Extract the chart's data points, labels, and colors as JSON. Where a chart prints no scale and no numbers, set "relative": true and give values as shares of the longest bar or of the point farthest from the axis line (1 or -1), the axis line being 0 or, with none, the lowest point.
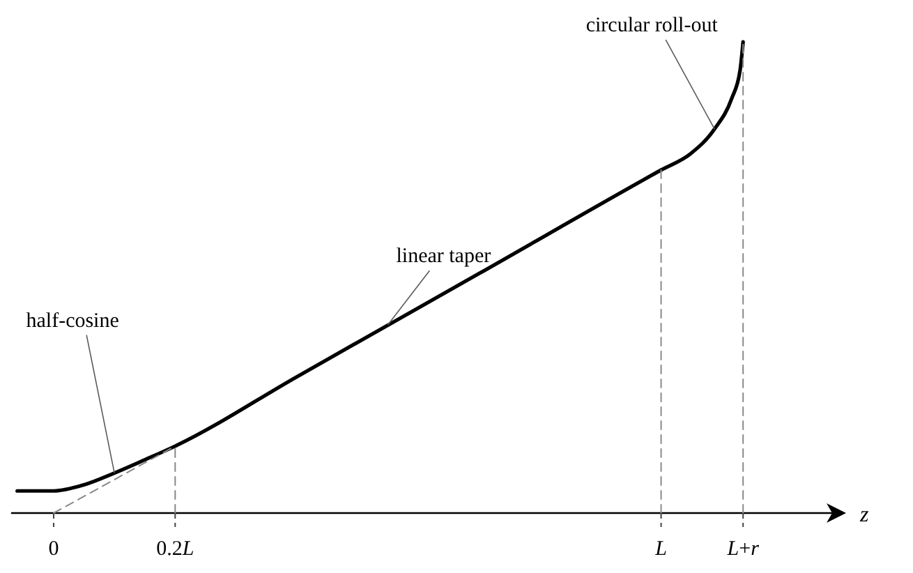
{
  "chart_data": {
    "type": "line",
    "relative": true,
    "xlabel": "z",
    "xlim": [
      -0.07,
      1.3
    ],
    "xticks": [
      0,
      {
        "value": 0.2,
        "label": "0.2L"
      },
      {
        "value": 1,
        "label": "L"
      },
      {
        "value": 1.135,
        "label": "L+r"
      }
    ],
    "series": [
      {
        "color": "#000000",
        "line_style": "solid",
        "x": [
          -0.06,
          0,
          0.05,
          0.1,
          0.15,
          0.2,
          0.4,
          0.7,
          1,
          1.049,
          1.088,
          1.116,
          1.13,
          1.135
        ],
        "values": [
          0.047,
          0.047,
          0.06,
          0.085,
          0.113,
          0.142,
          0.289,
          0.508,
          0.728,
          0.763,
          0.815,
          0.879,
          0.939,
          1
        ]
      },
      {
        "color": "#888888",
        "line_style": "dashed",
        "x": [
          0,
          0.2
        ],
        "values": [
          0,
          0.142
        ]
      },
      {
        "color": "#878787",
        "line_style": "dashed",
        "x": [
          0.2,
          0.2
        ],
        "values": [
          0,
          0.142
        ]
      },
      {
        "color": "#898989",
        "line_style": "dashed",
        "x": [
          1,
          1
        ],
        "values": [
          0,
          0.728
        ]
      },
      {
        "color": "#8a8a8a",
        "line_style": "dashed",
        "x": [
          1.135,
          1.135
        ],
        "values": [
          0,
          1
        ]
      }
    ],
    "annotations": [
      {
        "text": "half-cosine",
        "x": 0.1,
        "y": 0.085
      },
      {
        "text": "linear taper",
        "x": 0.55,
        "y": 0.399
      },
      {
        "text": "circular roll-out",
        "x": 1.088,
        "y": 0.815
      }
    ]
  }
}
